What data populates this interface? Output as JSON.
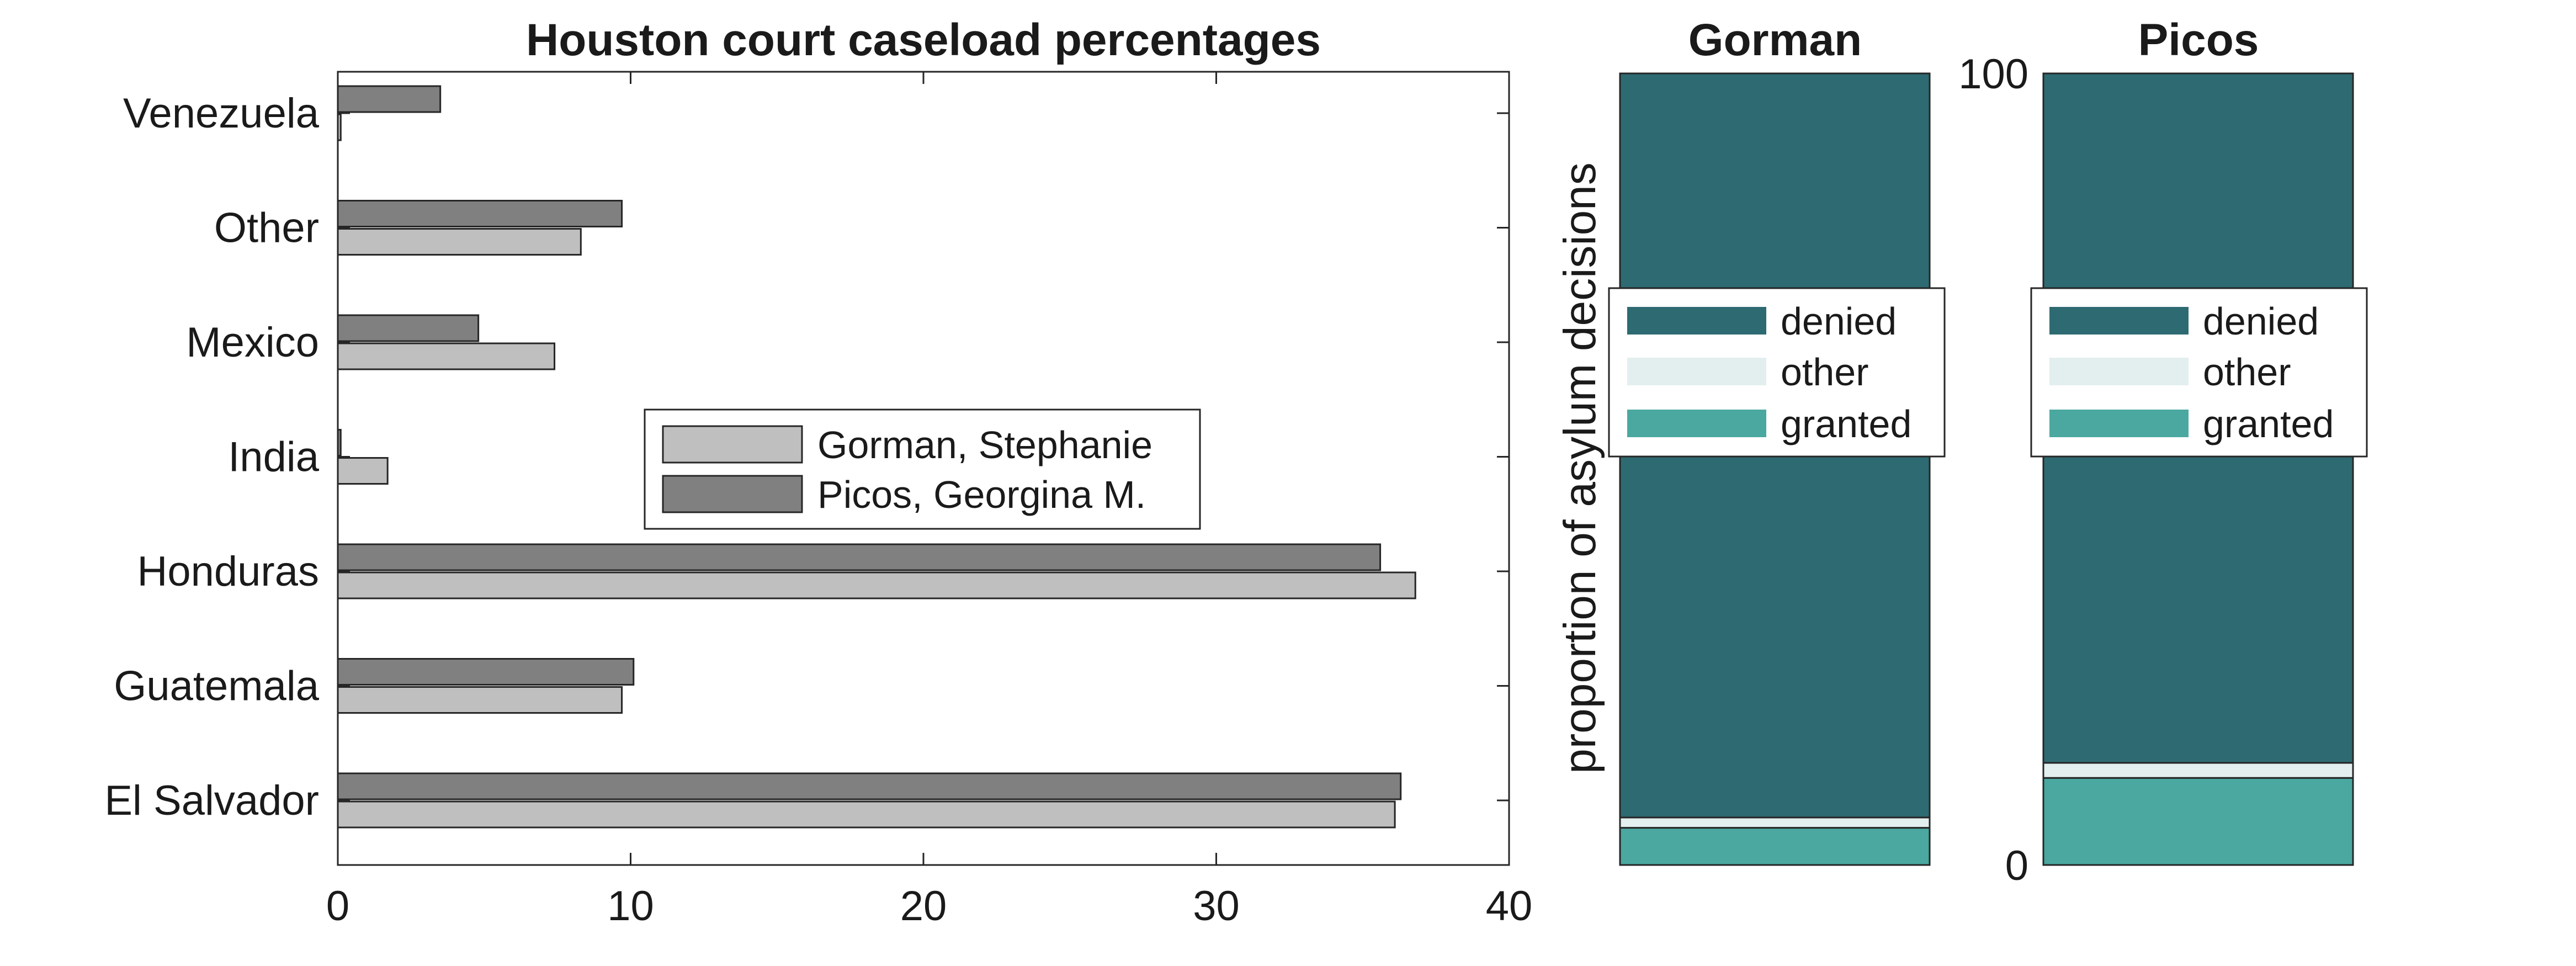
{
  "chart_data": [
    {
      "type": "bar",
      "orientation": "horizontal",
      "title": "Houston court caseload percentages",
      "xlabel": "",
      "ylabel": "",
      "categories": [
        "El Salvador",
        "Guatemala",
        "Honduras",
        "India",
        "Mexico",
        "Other",
        "Venezuela"
      ],
      "xlim": [
        0,
        40
      ],
      "xticks": [
        "0",
        "10",
        "20",
        "30",
        "40"
      ],
      "series": [
        {
          "name": "Gorman, Stephanie",
          "values": [
            36.1,
            9.7,
            36.8,
            1.7,
            7.4,
            8.3,
            0.1
          ],
          "color": "#bfbfbf"
        },
        {
          "name": "Picos, Georgina M.",
          "values": [
            36.3,
            10.1,
            35.6,
            0.1,
            4.8,
            9.7,
            3.5
          ],
          "color": "#808080"
        }
      ],
      "legend_position": "center"
    },
    {
      "type": "bar",
      "stacked": true,
      "title": "Gorman",
      "ylabel": "proportion of asylum decisions",
      "ylim": [
        0,
        100
      ],
      "yticks": [
        "0",
        "100"
      ],
      "series": [
        {
          "name": "granted",
          "value": 4.7,
          "color": "#4aa8a0"
        },
        {
          "name": "other",
          "value": 1.3,
          "color": "#e3eeef"
        },
        {
          "name": "denied",
          "value": 94.0,
          "color": "#2e6a72"
        }
      ],
      "legend_order": [
        "denied",
        "other",
        "granted"
      ]
    },
    {
      "type": "bar",
      "stacked": true,
      "title": "Picos",
      "ylabel": "",
      "ylim": [
        0,
        100
      ],
      "yticks": [
        "0",
        "100"
      ],
      "series": [
        {
          "name": "granted",
          "value": 11.0,
          "color": "#4aa8a0"
        },
        {
          "name": "other",
          "value": 1.9,
          "color": "#e3eeef"
        },
        {
          "name": "denied",
          "value": 87.1,
          "color": "#2e6a72"
        }
      ],
      "legend_order": [
        "denied",
        "other",
        "granted"
      ]
    }
  ]
}
